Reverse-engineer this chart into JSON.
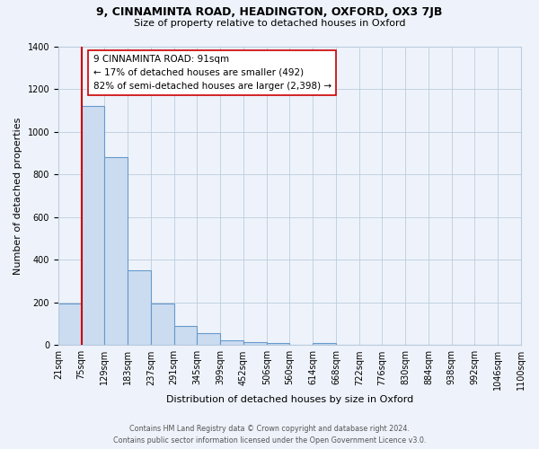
{
  "title_line1": "9, CINNAMINTA ROAD, HEADINGTON, OXFORD, OX3 7JB",
  "title_line2": "Size of property relative to detached houses in Oxford",
  "xlabel": "Distribution of detached houses by size in Oxford",
  "ylabel": "Number of detached properties",
  "bar_values": [
    195,
    1120,
    880,
    350,
    195,
    90,
    55,
    22,
    15,
    10,
    0,
    10,
    0,
    0,
    0,
    0,
    0,
    0,
    0,
    0
  ],
  "bin_labels": [
    "21sqm",
    "75sqm",
    "129sqm",
    "183sqm",
    "237sqm",
    "291sqm",
    "345sqm",
    "399sqm",
    "452sqm",
    "506sqm",
    "560sqm",
    "614sqm",
    "668sqm",
    "722sqm",
    "776sqm",
    "830sqm",
    "884sqm",
    "938sqm",
    "992sqm",
    "1046sqm",
    "1100sqm"
  ],
  "bar_color": "#ccdcf0",
  "bar_edge_color": "#6699cc",
  "vline_x": 1.0,
  "vline_color": "#cc0000",
  "annotation_text": "9 CINNAMINTA ROAD: 91sqm\n← 17% of detached houses are smaller (492)\n82% of semi-detached houses are larger (2,398) →",
  "annotation_box_color": "#ffffff",
  "annotation_box_edge": "#cc0000",
  "ylim": [
    0,
    1400
  ],
  "yticks": [
    0,
    200,
    400,
    600,
    800,
    1000,
    1200,
    1400
  ],
  "grid_color": "#bbccdd",
  "bg_color": "#eef3fb",
  "title_fontsize": 9,
  "subtitle_fontsize": 8,
  "xlabel_fontsize": 8,
  "ylabel_fontsize": 8,
  "tick_fontsize": 7,
  "annot_fontsize": 7.5,
  "footer_line1": "Contains HM Land Registry data © Crown copyright and database right 2024.",
  "footer_line2": "Contains public sector information licensed under the Open Government Licence v3.0."
}
